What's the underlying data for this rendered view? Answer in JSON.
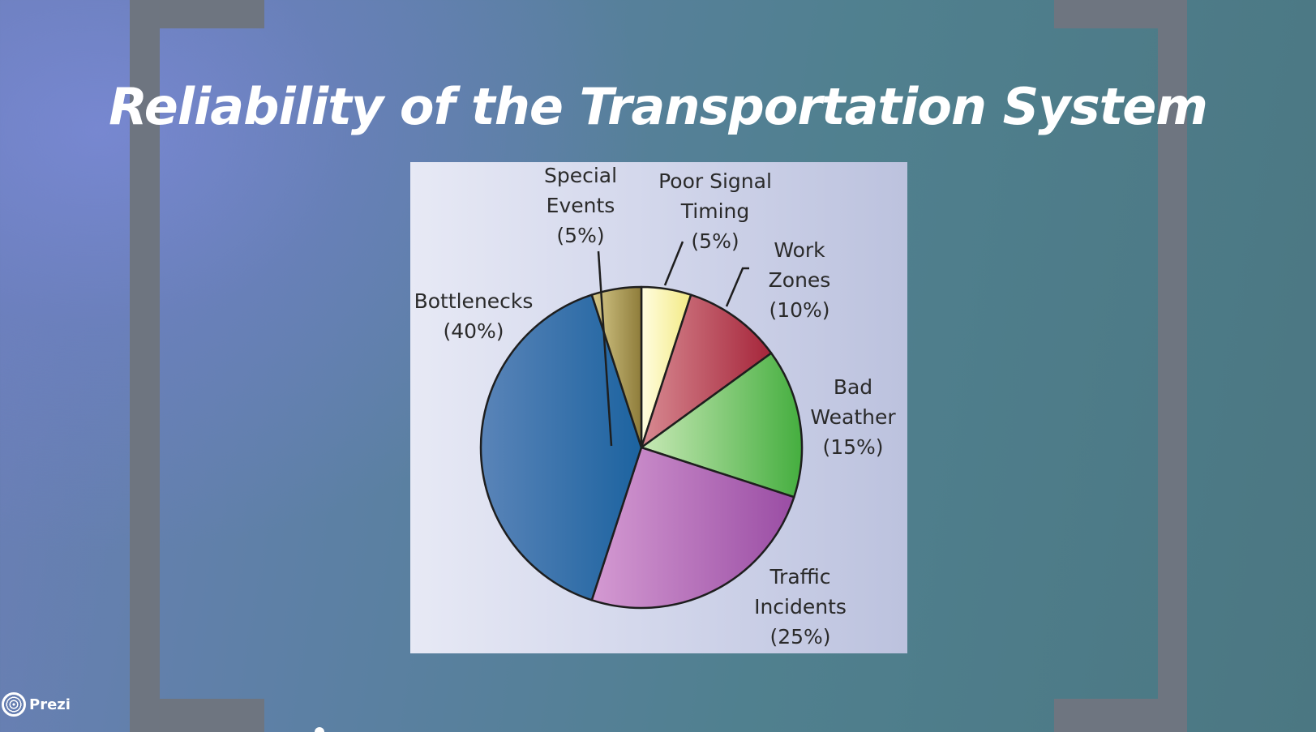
{
  "slide": {
    "title": "Reliability of the Transportation System"
  },
  "branding": {
    "logo_icon": "prezi-logo-icon",
    "label": "Prezi"
  },
  "chart_data": {
    "type": "pie",
    "title": "",
    "categories": [
      "Special Events",
      "Poor Signal Timing",
      "Work Zones",
      "Bad Weather",
      "Traffic Incidents",
      "Bottlenecks"
    ],
    "values": [
      5,
      5,
      10,
      15,
      25,
      40
    ],
    "unit": "%",
    "labels": [
      {
        "lines": [
          "Special",
          "Events",
          "(5%)"
        ]
      },
      {
        "lines": [
          "Poor Signal",
          "Timing",
          "(5%)"
        ]
      },
      {
        "lines": [
          "Work",
          "Zones",
          "(10%)"
        ]
      },
      {
        "lines": [
          "Bad",
          "Weather",
          "(15%)"
        ]
      },
      {
        "lines": [
          "Traffic",
          "Incidents",
          "(25%)"
        ]
      },
      {
        "lines": [
          "Bottlenecks",
          "(40%)"
        ]
      }
    ],
    "colors": [
      "#fbf6a8",
      "#c24a5a",
      "#6cc45a",
      "#b66ab8",
      "#2f6ba7",
      "#b3a35a"
    ],
    "slice_order_clockwise_from_top": [
      "Poor Signal Timing",
      "Work Zones",
      "Bad Weather",
      "Traffic Incidents",
      "Bottlenecks",
      "Special Events"
    ]
  }
}
